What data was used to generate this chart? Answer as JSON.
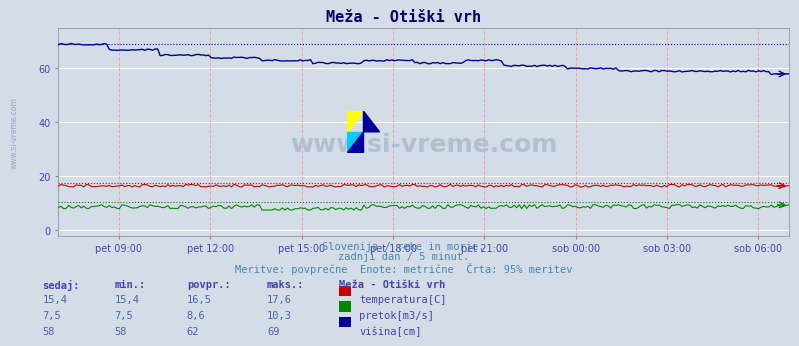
{
  "title": "Meža - Otiški vrh",
  "bg_color": "#d4dce8",
  "plot_bg_color": "#d4dce8",
  "grid_color_h": "#ffffff",
  "grid_color_v": "#ffaaaa",
  "ylabel_color": "#4444aa",
  "xlabel_color": "#4444aa",
  "title_color": "#000066",
  "watermark_text": "www.si-vreme.com",
  "watermark_color": "#aabbcc",
  "subtitle_lines": [
    "Slovenija / reke in morje.",
    "zadnji dan / 5 minut.",
    "Meritve: povprečne  Enote: metrične  Črta: 95% meritev"
  ],
  "subtitle_color": "#4488aa",
  "table_header": [
    "sedaj:",
    "min.:",
    "povpr.:",
    "maks.:",
    "Meža - Otiški vrh"
  ],
  "table_data": [
    [
      "15,4",
      "15,4",
      "16,5",
      "17,6",
      "temperatura[C]",
      "#cc0000"
    ],
    [
      "7,5",
      "7,5",
      "8,6",
      "10,3",
      "pretok[m3/s]",
      "#008800"
    ],
    [
      "58",
      "58",
      "62",
      "69",
      "višina[cm]",
      "#000099"
    ]
  ],
  "x_tick_labels": [
    "pet 09:00",
    "pet 12:00",
    "pet 15:00",
    "pet 18:00",
    "pet 21:00",
    "sob 00:00",
    "sob 03:00",
    "sob 06:00"
  ],
  "x_tick_positions": [
    0.083,
    0.208,
    0.333,
    0.458,
    0.583,
    0.708,
    0.833,
    0.958
  ],
  "y_ticks": [
    0,
    20,
    40,
    60
  ],
  "y_max": 75,
  "y_min": -2,
  "n_points": 288,
  "temp_color": "#cc0000",
  "flow_color": "#008800",
  "height_color": "#000099",
  "temp_dot_color": "#cc0000",
  "flow_dot_color": "#008800",
  "height_dot_color": "#000099",
  "temp_max_line": 17.6,
  "flow_max_line": 10.3,
  "height_max_line": 69.0,
  "logo_colors": [
    "#ffff00",
    "#00aaff",
    "#000099"
  ]
}
